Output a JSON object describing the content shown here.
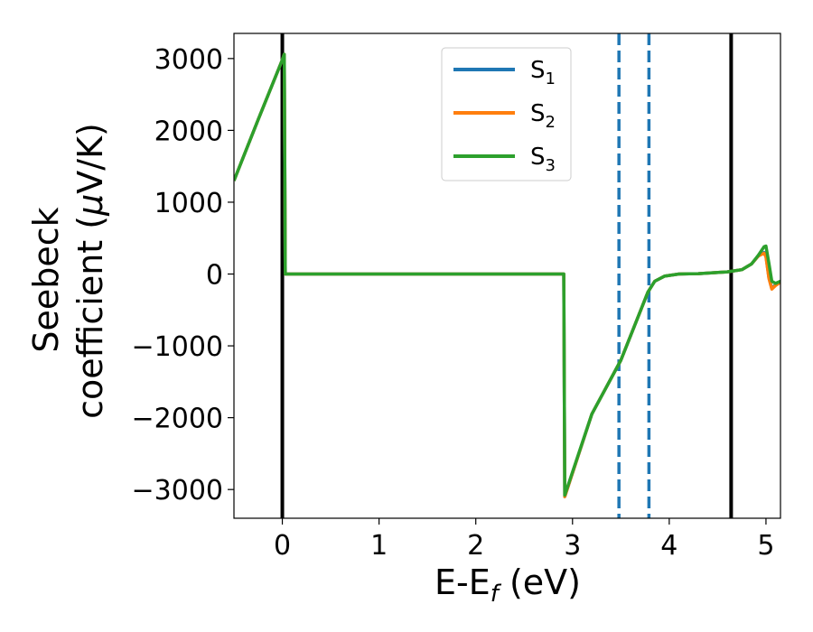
{
  "chart_data": {
    "type": "line",
    "title": "",
    "xlabel": {
      "main": "E-E",
      "sub": "f",
      "unit": " (eV)"
    },
    "ylabel": {
      "line1": "Seebeck",
      "line2_pre": "coefficient  (",
      "mu": "μ",
      "line2_post": "V/K)"
    },
    "xlim": [
      -0.5,
      5.15
    ],
    "ylim": [
      -3400,
      3350
    ],
    "xticks": [
      0,
      1,
      2,
      3,
      4,
      5
    ],
    "xtick_labels": [
      "0",
      "1",
      "2",
      "3",
      "4",
      "5"
    ],
    "yticks": [
      3000,
      2000,
      1000,
      0,
      -1000,
      -2000,
      -3000
    ],
    "ytick_labels": [
      "3000",
      "2000",
      "1000",
      "0",
      "−1000",
      "−2000",
      "−3000"
    ],
    "legend_position": "upper-center",
    "grid": false,
    "vertical_lines": [
      {
        "x": 0.0,
        "style": "solid",
        "color": "#000000"
      },
      {
        "x": 4.64,
        "style": "solid",
        "color": "#000000"
      },
      {
        "x": 3.48,
        "style": "dashed",
        "color": "#1f77b4"
      },
      {
        "x": 3.79,
        "style": "dashed",
        "color": "#1f77b4"
      }
    ],
    "series": [
      {
        "name": "S",
        "sub": "1",
        "color": "#1f77b4",
        "x": [
          -0.5,
          -0.25,
          0.0,
          0.02,
          0.03,
          1.0,
          2.0,
          2.91,
          2.92,
          3.2,
          3.5,
          3.78,
          3.85,
          3.95,
          4.1,
          4.3,
          4.6,
          4.75,
          4.85,
          4.92,
          4.98,
          5.0,
          5.03,
          5.06,
          5.1,
          5.15
        ],
        "y": [
          1300,
          2150,
          2980,
          3060,
          0,
          0,
          0,
          0,
          -3100,
          -1950,
          -1200,
          -250,
          -100,
          -30,
          0,
          5,
          30,
          60,
          140,
          250,
          300,
          250,
          -50,
          -200,
          -150,
          -110
        ]
      },
      {
        "name": "S",
        "sub": "2",
        "color": "#ff7f0e",
        "x": [
          -0.5,
          -0.25,
          0.0,
          0.02,
          0.03,
          1.0,
          2.0,
          2.91,
          2.92,
          3.2,
          3.5,
          3.78,
          3.85,
          3.95,
          4.1,
          4.3,
          4.6,
          4.75,
          4.85,
          4.92,
          4.98,
          5.0,
          5.03,
          5.06,
          5.1,
          5.15
        ],
        "y": [
          1300,
          2150,
          2980,
          3060,
          0,
          0,
          0,
          0,
          -3100,
          -1950,
          -1200,
          -250,
          -100,
          -30,
          0,
          5,
          30,
          60,
          140,
          250,
          290,
          240,
          -60,
          -210,
          -160,
          -115
        ]
      },
      {
        "name": "S",
        "sub": "3",
        "color": "#2ca02c",
        "x": [
          -0.5,
          -0.25,
          0.0,
          0.02,
          0.03,
          1.0,
          2.0,
          2.91,
          2.92,
          3.2,
          3.5,
          3.78,
          3.85,
          3.95,
          4.1,
          4.3,
          4.6,
          4.75,
          4.85,
          4.92,
          4.98,
          5.0,
          5.03,
          5.06,
          5.1,
          5.15
        ],
        "y": [
          1300,
          2150,
          2980,
          3060,
          0,
          0,
          0,
          0,
          -3080,
          -1950,
          -1200,
          -250,
          -100,
          -30,
          0,
          5,
          30,
          60,
          140,
          260,
          380,
          390,
          150,
          -100,
          -130,
          -100
        ]
      }
    ]
  }
}
